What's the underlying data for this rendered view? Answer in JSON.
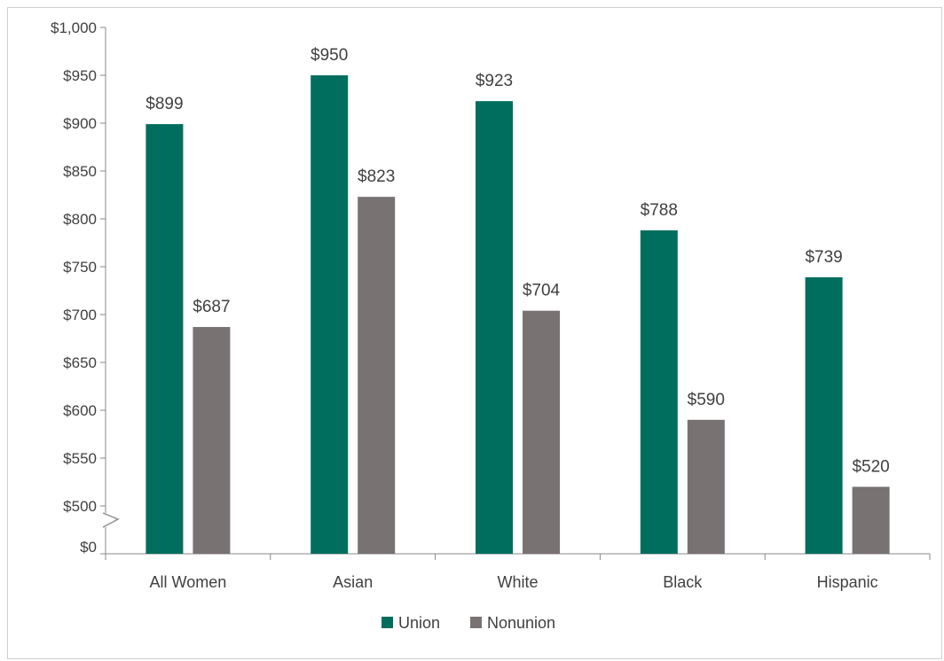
{
  "chart_data": {
    "type": "bar",
    "title": "",
    "xlabel": "",
    "ylabel": "",
    "categories": [
      "All Women",
      "Asian",
      "White",
      "Black",
      "Hispanic"
    ],
    "series": [
      {
        "name": "Union",
        "color": "#006e5e",
        "values": [
          899,
          950,
          923,
          788,
          739
        ],
        "labels": [
          "$899",
          "$950",
          "$923",
          "$788",
          "$739"
        ]
      },
      {
        "name": "Nonunion",
        "color": "#787372",
        "values": [
          687,
          823,
          704,
          590,
          520
        ],
        "labels": [
          "$687",
          "$823",
          "$704",
          "$590",
          "$520"
        ]
      }
    ],
    "ylim": [
      500,
      1000
    ],
    "axis_break": true,
    "y_ticks": [
      {
        "value": 1000,
        "label": "$1,000"
      },
      {
        "value": 950,
        "label": "$950"
      },
      {
        "value": 900,
        "label": "$900"
      },
      {
        "value": 850,
        "label": "$850"
      },
      {
        "value": 800,
        "label": "$800"
      },
      {
        "value": 750,
        "label": "$750"
      },
      {
        "value": 700,
        "label": "$700"
      },
      {
        "value": 650,
        "label": "$650"
      },
      {
        "value": 600,
        "label": "$600"
      },
      {
        "value": 550,
        "label": "$550"
      },
      {
        "value": 500,
        "label": "$500"
      }
    ],
    "baseline_label": "$0",
    "grid": false,
    "legend": "bottom"
  }
}
